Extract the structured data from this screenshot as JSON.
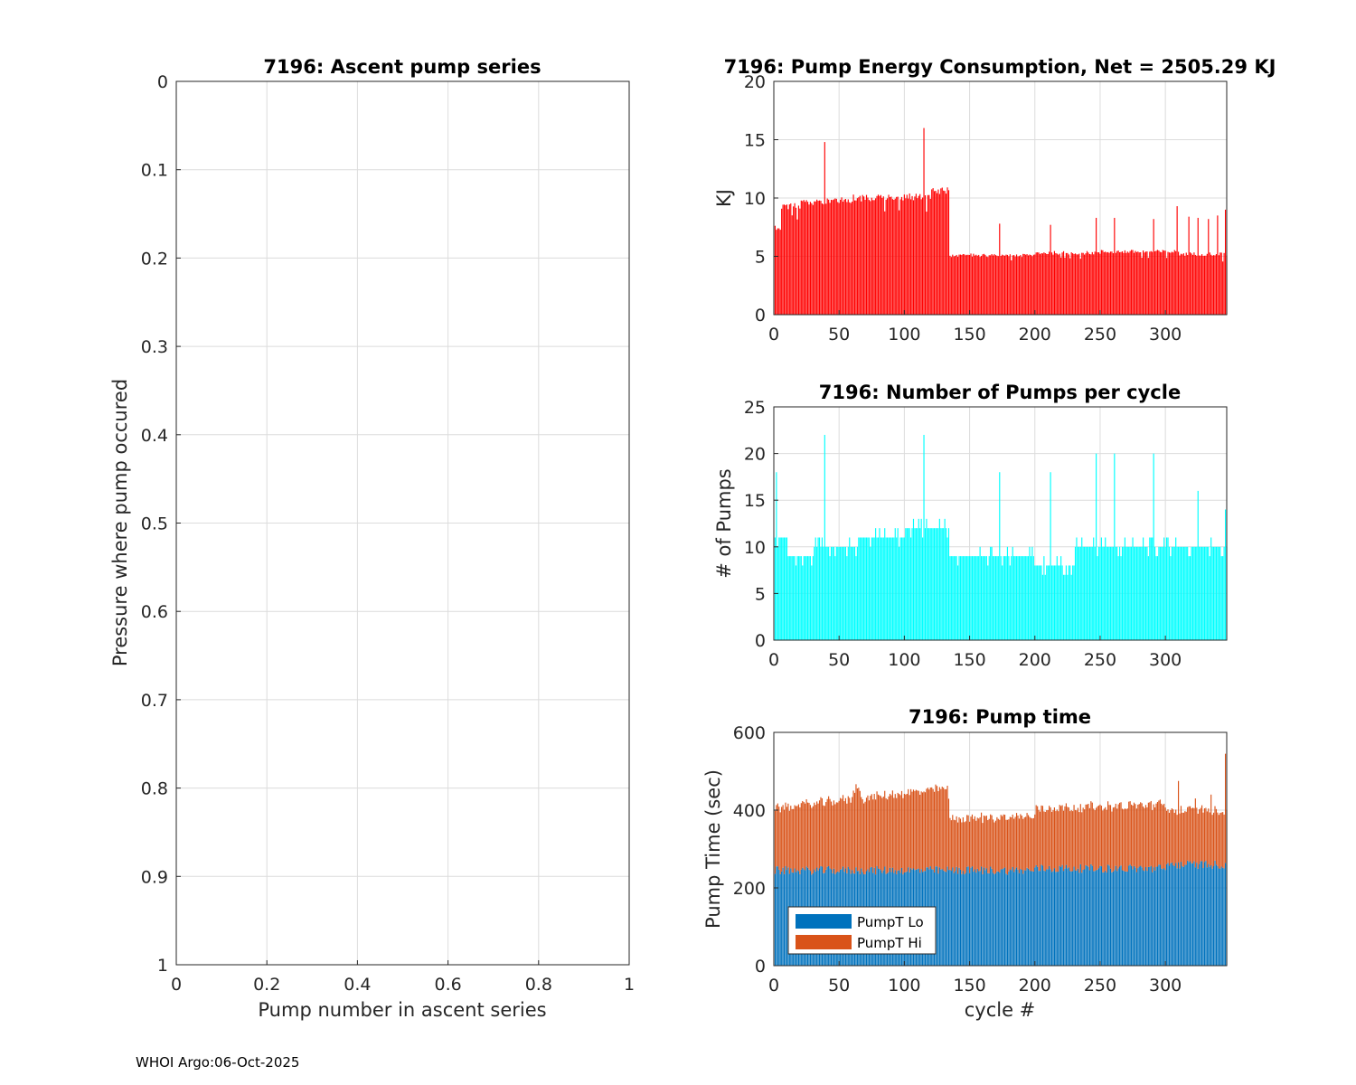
{
  "footer": "WHOI Argo:06-Oct-2025",
  "chart_data": [
    {
      "type": "scatter",
      "title": "7196: Ascent pump series",
      "xlabel": "Pump number in ascent series",
      "ylabel": "Pressure where pump occured",
      "xlim": [
        0,
        1
      ],
      "ylim": [
        0,
        1
      ],
      "y_reversed": true,
      "grid": true,
      "xticks": [
        "0",
        "0.2",
        "0.4",
        "0.6",
        "0.8",
        "1"
      ],
      "yticks": [
        "0",
        "0.1",
        "0.2",
        "0.3",
        "0.4",
        "0.5",
        "0.6",
        "0.7",
        "0.8",
        "0.9",
        "1"
      ],
      "series": []
    },
    {
      "type": "bar",
      "title": "7196: Pump Energy Consumption,  Net = 2505.29 KJ",
      "xlabel": "",
      "ylabel": "KJ",
      "xlim": [
        0,
        347
      ],
      "ylim": [
        0,
        20
      ],
      "grid": true,
      "color": "#ff0000",
      "xticks": [
        "0",
        "50",
        "100",
        "150",
        "200",
        "250",
        "300"
      ],
      "yticks": [
        "0",
        "5",
        "10",
        "15",
        "20"
      ],
      "segments": [
        {
          "from": 1,
          "to": 5,
          "value": 7.5
        },
        {
          "from": 6,
          "to": 20,
          "value": 9.3
        },
        {
          "from": 21,
          "to": 40,
          "value": 9.6
        },
        {
          "from": 41,
          "to": 60,
          "value": 9.8
        },
        {
          "from": 61,
          "to": 80,
          "value": 10.0
        },
        {
          "from": 81,
          "to": 100,
          "value": 10.0
        },
        {
          "from": 101,
          "to": 120,
          "value": 10.1
        },
        {
          "from": 121,
          "to": 134,
          "value": 10.6
        },
        {
          "from": 135,
          "to": 200,
          "value": 5.1
        },
        {
          "from": 201,
          "to": 250,
          "value": 5.3
        },
        {
          "from": 251,
          "to": 310,
          "value": 5.4
        },
        {
          "from": 311,
          "to": 347,
          "value": 5.2
        }
      ],
      "spikes": [
        {
          "x": 39,
          "value": 14.8
        },
        {
          "x": 115,
          "value": 16.0
        },
        {
          "x": 173,
          "value": 7.8
        },
        {
          "x": 212,
          "value": 7.7
        },
        {
          "x": 247,
          "value": 8.3
        },
        {
          "x": 261,
          "value": 8.3
        },
        {
          "x": 291,
          "value": 8.2
        },
        {
          "x": 309,
          "value": 9.3
        },
        {
          "x": 318,
          "value": 8.4
        },
        {
          "x": 325,
          "value": 8.3
        },
        {
          "x": 333,
          "value": 8.2
        },
        {
          "x": 340,
          "value": 8.5
        },
        {
          "x": 346,
          "value": 9.0
        }
      ]
    },
    {
      "type": "bar",
      "title": "7196: Number of Pumps per cycle",
      "xlabel": "",
      "ylabel": "# of Pumps",
      "xlim": [
        0,
        347
      ],
      "ylim": [
        0,
        25
      ],
      "grid": true,
      "color": "#00ffff",
      "xticks": [
        "0",
        "50",
        "100",
        "150",
        "200",
        "250",
        "300"
      ],
      "yticks": [
        "0",
        "5",
        "10",
        "15",
        "20",
        "25"
      ],
      "segments": [
        {
          "from": 1,
          "to": 10,
          "value": 11
        },
        {
          "from": 11,
          "to": 30,
          "value": 9
        },
        {
          "from": 31,
          "to": 65,
          "value": 10
        },
        {
          "from": 66,
          "to": 100,
          "value": 11
        },
        {
          "from": 101,
          "to": 134,
          "value": 12
        },
        {
          "from": 135,
          "to": 200,
          "value": 9
        },
        {
          "from": 201,
          "to": 230,
          "value": 8
        },
        {
          "from": 231,
          "to": 300,
          "value": 10
        },
        {
          "from": 301,
          "to": 347,
          "value": 10
        }
      ],
      "spikes": [
        {
          "x": 2,
          "value": 18
        },
        {
          "x": 39,
          "value": 22
        },
        {
          "x": 115,
          "value": 22
        },
        {
          "x": 173,
          "value": 18
        },
        {
          "x": 212,
          "value": 18
        },
        {
          "x": 247,
          "value": 20
        },
        {
          "x": 261,
          "value": 20
        },
        {
          "x": 291,
          "value": 20
        },
        {
          "x": 325,
          "value": 16
        },
        {
          "x": 346,
          "value": 14
        }
      ]
    },
    {
      "type": "bar",
      "stacked": true,
      "title": "7196: Pump time",
      "xlabel": "cycle #",
      "ylabel": "Pump Time (sec)",
      "xlim": [
        0,
        347
      ],
      "ylim": [
        0,
        600
      ],
      "grid": true,
      "xticks": [
        "0",
        "50",
        "100",
        "150",
        "200",
        "250",
        "300"
      ],
      "yticks": [
        "0",
        "200",
        "400",
        "600"
      ],
      "legend_position": "bottom-left",
      "series": [
        {
          "name": "PumpT Lo",
          "color": "#0072bd",
          "segments": [
            {
              "from": 1,
              "to": 60,
              "value": 245
            },
            {
              "from": 61,
              "to": 134,
              "value": 245
            },
            {
              "from": 135,
              "to": 200,
              "value": 245
            },
            {
              "from": 201,
              "to": 300,
              "value": 250
            },
            {
              "from": 301,
              "to": 347,
              "value": 260
            }
          ]
        },
        {
          "name": "PumpT Hi",
          "color": "#d95319",
          "segments": [
            {
              "from": 1,
              "to": 60,
              "value": 160
            },
            {
              "from": 61,
              "to": 134,
              "value": 180
            },
            {
              "from": 135,
              "to": 200,
              "value": 133
            },
            {
              "from": 201,
              "to": 300,
              "value": 148
            },
            {
              "from": 301,
              "to": 347,
              "value": 140
            }
          ]
        }
      ],
      "totals_note": "Total rises from ~405 to ~455 by cycle 134, drops to ~375, rises to ~400 by cycle 300; spikes near 310 (~475) and 346 (~545)"
    }
  ]
}
